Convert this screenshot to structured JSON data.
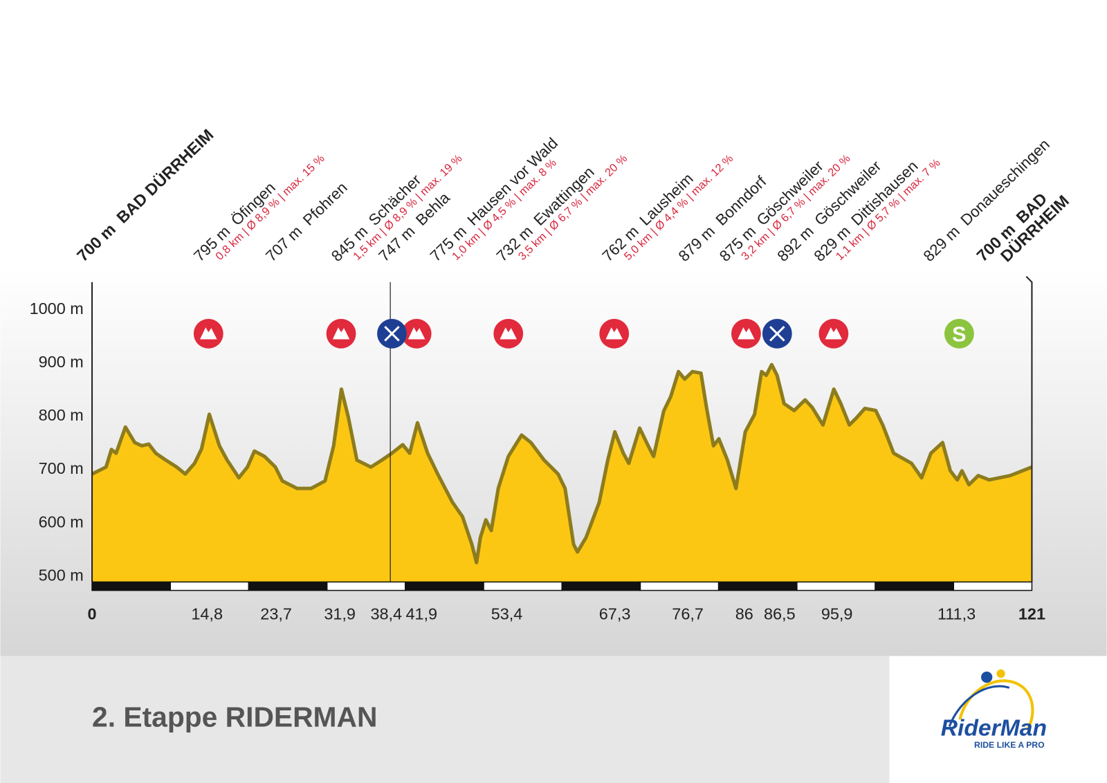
{
  "chart_data": {
    "type": "area",
    "title": "2. Etappe RIDERMAN",
    "x": [
      0,
      1.8,
      2.5,
      3.1,
      4.3,
      5.5,
      6.4,
      7.3,
      8.2,
      9.5,
      10.9,
      12,
      13.2,
      14.1,
      15.1,
      16.4,
      17.4,
      18.9,
      20,
      20.9,
      22.2,
      23.6,
      24.5,
      26.4,
      28.2,
      30,
      31.1,
      32.1,
      33,
      34.1,
      35.9,
      37.3,
      38.6,
      40,
      40.9,
      41.9,
      43.2,
      44.5,
      46.4,
      47.7,
      48.9,
      49.5,
      50,
      50.7,
      51.4,
      52.3,
      53.6,
      55.3,
      56.5,
      58.2,
      60,
      60.9,
      62,
      62.5,
      63.6,
      65.3,
      66.4,
      67.3,
      68.4,
      69.1,
      70.5,
      71.6,
      72.3,
      73.6,
      74.5,
      75.5,
      76.3,
      77.3,
      78.4,
      79.1,
      80,
      80.7,
      81.8,
      82.9,
      84.1,
      85.3,
      86.2,
      86.8,
      87.5,
      88.2,
      89.1,
      90.4,
      91.8,
      92.7,
      94.1,
      95.5,
      96.4,
      97.5,
      98.4,
      99.5,
      100.9,
      101.8,
      103.2,
      105.5,
      106.8,
      108,
      109.5,
      110.5,
      111.4,
      112,
      112.9,
      114.1,
      115.5,
      118.2,
      121
    ],
    "values": [
      692,
      705,
      738,
      731,
      780,
      751,
      745,
      748,
      731,
      718,
      705,
      692,
      712,
      739,
      804,
      745,
      718,
      685,
      705,
      735,
      725,
      705,
      679,
      665,
      665,
      679,
      745,
      851,
      798,
      718,
      705,
      718,
      731,
      747,
      731,
      788,
      731,
      692,
      639,
      612,
      560,
      526,
      573,
      606,
      586,
      665,
      725,
      765,
      751,
      718,
      692,
      665,
      560,
      546,
      573,
      639,
      718,
      771,
      731,
      712,
      778,
      745,
      725,
      810,
      837,
      884,
      870,
      884,
      881,
      817,
      745,
      758,
      718,
      665,
      771,
      804,
      884,
      877,
      897,
      877,
      824,
      811,
      831,
      817,
      784,
      851,
      824,
      784,
      797,
      815,
      811,
      784,
      731,
      712,
      685,
      731,
      751,
      698,
      681,
      698,
      672,
      689,
      681,
      689,
      705
    ],
    "color": "#fcc713",
    "edge_color": "#8d7c1e",
    "xlim": [
      0,
      121
    ],
    "xticks": [
      0,
      {
        "value": 14.8,
        "label": "14,8"
      },
      {
        "value": 23.7,
        "label": "23,7"
      },
      {
        "value": 31.9,
        "label": "31,9"
      },
      {
        "value": 38.4,
        "label": "38,4"
      },
      {
        "value": 41.9,
        "label": "41,9"
      },
      {
        "value": 53.4,
        "label": "53,4"
      },
      {
        "value": 67.3,
        "label": "67,3"
      },
      {
        "value": 76.7,
        "label": "76,7"
      },
      86,
      {
        "value": 86.5,
        "label": "86,5"
      },
      {
        "value": 95.9,
        "label": "95,9"
      },
      {
        "value": 111.3,
        "label": "111,3"
      },
      121
    ],
    "ylim": [
      487,
      1049
    ],
    "yticks": [
      {
        "value": 500,
        "label": "500 m"
      },
      {
        "value": 600,
        "label": "600 m"
      },
      {
        "value": 700,
        "label": "700 m"
      },
      {
        "value": 800,
        "label": "800 m"
      },
      {
        "value": 900,
        "label": "900 m"
      },
      {
        "value": 1000,
        "label": "1000 m"
      }
    ]
  },
  "places": [
    {
      "label": "700 m  BAD DÜRRHEIM"
    },
    {
      "label": "795 m  Öfingen",
      "detail": "0,8 km | Ø 8,9 % | max. 15 %"
    },
    {
      "label": "707 m  Pfohren"
    },
    {
      "label": "845 m  Schächer",
      "detail": "1,5 km | Ø 8,9 % | max. 19 %"
    },
    {
      "label": "747 m  Behla"
    },
    {
      "label": "775 m  Hausen vor Wald",
      "detail": "1,0 km | Ø 4,5 % | max. 8 %"
    },
    {
      "label": "732 m  Ewattingen",
      "detail": "3,5 km | Ø 6,7 % | max. 20 %"
    },
    {
      "label": "762 m  Lausheim",
      "detail": "5,0 km | Ø 4,4 % | max. 12 %"
    },
    {
      "label": "879 m  Bonndorf"
    },
    {
      "label": "875 m  Göschweiler",
      "detail": "3,2 km | Ø 6,7 % | max. 20 %"
    },
    {
      "label": "892 m  Göschweiler"
    },
    {
      "label": "829 m  Dittishausen",
      "detail": "1,1 km | Ø 5,7 % | max. 7 %"
    },
    {
      "label": "829 m  Donaueschingen"
    },
    {
      "label": "700 m  BAD",
      "detail": "DÜRRHEIM"
    }
  ],
  "sprint_symbol": "S",
  "logo": {
    "name": "RiderMan",
    "tagline": "RIDE LIKE A PRO"
  }
}
